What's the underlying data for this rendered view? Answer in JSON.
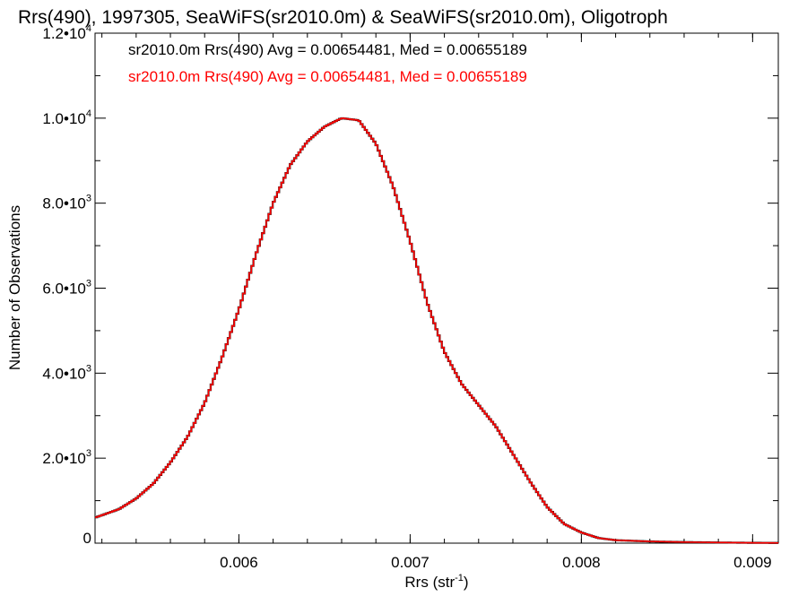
{
  "chart_data": {
    "type": "line",
    "title": "Rrs(490), 1997305, SeaWiFS(sr2010.0m) & SeaWiFS(sr2010.0m), Oligotroph",
    "xlabel_main": "Rrs (str",
    "xlabel_sup": "-1",
    "xlabel_close": ")",
    "ylabel": "Number of Observations",
    "xlim": [
      0.00516,
      0.00915
    ],
    "ylim": [
      0,
      12000
    ],
    "x_ticks": [
      {
        "value": 0.006,
        "label": "0.006"
      },
      {
        "value": 0.007,
        "label": "0.007"
      },
      {
        "value": 0.008,
        "label": "0.008"
      },
      {
        "value": 0.009,
        "label": "0.009"
      }
    ],
    "y_ticks": [
      {
        "value": 0,
        "mant": "0",
        "exp": ""
      },
      {
        "value": 2000,
        "mant": "2.0•10",
        "exp": "3"
      },
      {
        "value": 4000,
        "mant": "4.0•10",
        "exp": "3"
      },
      {
        "value": 6000,
        "mant": "6.0•10",
        "exp": "3"
      },
      {
        "value": 8000,
        "mant": "8.0•10",
        "exp": "3"
      },
      {
        "value": 10000,
        "mant": "1.0•10",
        "exp": "4"
      },
      {
        "value": 12000,
        "mant": "1.2•10",
        "exp": "4"
      }
    ],
    "annotations": [
      {
        "text": "sr2010.0m Rrs(490) Avg = 0.00654481, Med = 0.00655189",
        "color": "#000000"
      },
      {
        "text": "sr2010.0m Rrs(490) Avg = 0.00654481, Med = 0.00655189",
        "color": "#ff0000"
      }
    ],
    "series": [
      {
        "color_under": "#000000",
        "color": "#ff0000",
        "x": [
          0.00516,
          0.0053,
          0.0054,
          0.0055,
          0.0056,
          0.0057,
          0.0058,
          0.0059,
          0.006,
          0.0061,
          0.0062,
          0.0063,
          0.0064,
          0.0065,
          0.0066,
          0.0067,
          0.0068,
          0.0069,
          0.007,
          0.0071,
          0.0072,
          0.0073,
          0.0074,
          0.0075,
          0.0076,
          0.0077,
          0.0078,
          0.0079,
          0.008,
          0.0081,
          0.0082,
          0.0084,
          0.0086,
          0.0088,
          0.009,
          0.00915
        ],
        "y": [
          600,
          800,
          1050,
          1400,
          1900,
          2500,
          3300,
          4350,
          5500,
          6800,
          8000,
          8900,
          9450,
          9800,
          10000,
          9950,
          9400,
          8400,
          7100,
          5650,
          4500,
          3750,
          3250,
          2750,
          2100,
          1450,
          850,
          450,
          250,
          120,
          70,
          40,
          25,
          15,
          8,
          5
        ]
      }
    ]
  }
}
